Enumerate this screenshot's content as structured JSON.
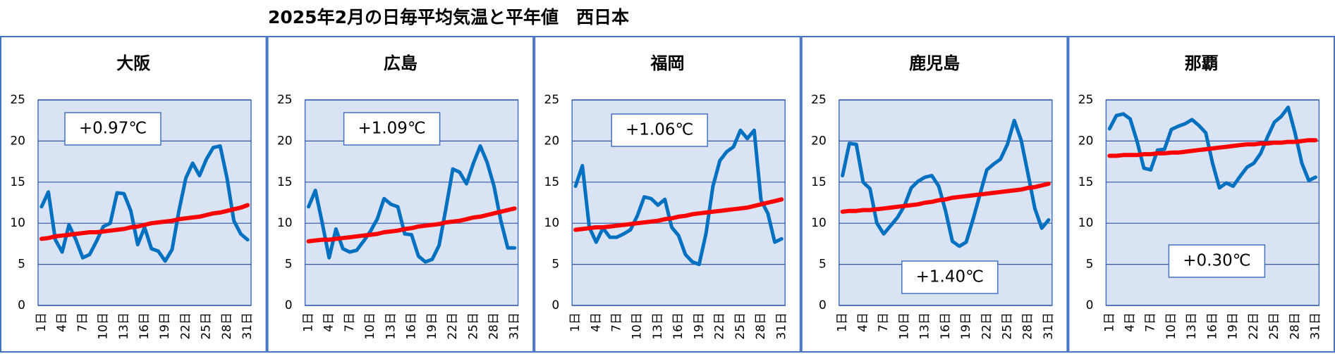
{
  "title": "2025年2月の日毎平均気温と平年値　西日本",
  "chart_data": [
    {
      "type": "line",
      "title": "大阪",
      "annotation": "+0.97℃",
      "categories": [
        "1日",
        null,
        null,
        "4日",
        null,
        null,
        "7日",
        null,
        null,
        "10日",
        null,
        null,
        "13日",
        null,
        null,
        "16日",
        null,
        null,
        "19日",
        null,
        null,
        "22日",
        null,
        null,
        "25日",
        null,
        null,
        "28日",
        null,
        null,
        "31日"
      ],
      "series": [
        {
          "color": "#0070c0",
          "values": [
            12,
            13.8,
            8,
            6.5,
            9.8,
            8,
            5.8,
            6.2,
            7.8,
            9.6,
            10,
            13.7,
            13.6,
            11.5,
            7.4,
            9.5,
            6.9,
            6.6,
            5.4,
            6.8,
            11.5,
            15.5,
            17.3,
            15.8,
            17.8,
            19.2,
            19.4,
            15.5,
            10.3,
            8.7,
            8.0
          ]
        },
        {
          "color": "#ff0000",
          "values": [
            8.1,
            8.2,
            8.4,
            8.5,
            8.6,
            8.7,
            8.8,
            8.9,
            8.9,
            9.0,
            9.1,
            9.2,
            9.3,
            9.5,
            9.6,
            9.8,
            10.0,
            10.1,
            10.2,
            10.3,
            10.5,
            10.6,
            10.7,
            10.8,
            11.0,
            11.2,
            11.3,
            11.5,
            11.7,
            11.9,
            12.2
          ]
        }
      ],
      "ylim": [
        0,
        25
      ],
      "yticks": [
        0,
        5,
        10,
        15,
        20,
        25
      ],
      "grid": true
    },
    {
      "type": "line",
      "title": "広島",
      "annotation": "+1.09℃",
      "categories": [
        "1日",
        null,
        null,
        "4日",
        null,
        null,
        "7日",
        null,
        null,
        "10日",
        null,
        null,
        "13日",
        null,
        null,
        "16日",
        null,
        null,
        "19日",
        null,
        null,
        "22日",
        null,
        null,
        "25日",
        null,
        null,
        "28日",
        null,
        null,
        "31日"
      ],
      "series": [
        {
          "color": "#0070c0",
          "values": [
            12,
            14,
            10,
            5.8,
            9.3,
            6.9,
            6.5,
            6.7,
            7.8,
            9,
            10.5,
            13,
            12.3,
            12,
            8.7,
            8.6,
            6,
            5.3,
            5.6,
            7.3,
            11.8,
            16.6,
            16.2,
            14.8,
            17.3,
            19.4,
            17.4,
            14.5,
            10.3,
            7.0,
            7.0
          ]
        },
        {
          "color": "#ff0000",
          "values": [
            7.8,
            7.9,
            8.0,
            8.0,
            8.1,
            8.2,
            8.3,
            8.4,
            8.5,
            8.6,
            8.7,
            8.9,
            9.0,
            9.1,
            9.3,
            9.4,
            9.6,
            9.7,
            9.8,
            9.9,
            10.1,
            10.2,
            10.3,
            10.5,
            10.7,
            10.8,
            11.0,
            11.2,
            11.4,
            11.6,
            11.8
          ]
        }
      ],
      "ylim": [
        0,
        25
      ],
      "yticks": [
        0,
        5,
        10,
        15,
        20,
        25
      ],
      "grid": true
    },
    {
      "type": "line",
      "title": "福岡",
      "annotation": "+1.06℃",
      "categories": [
        "1日",
        null,
        null,
        "4日",
        null,
        null,
        "7日",
        null,
        null,
        "10日",
        null,
        null,
        "13日",
        null,
        null,
        "16日",
        null,
        null,
        "19日",
        null,
        null,
        "22日",
        null,
        null,
        "25日",
        null,
        null,
        "28日",
        null,
        null,
        "31日"
      ],
      "series": [
        {
          "color": "#0070c0",
          "values": [
            14.5,
            17,
            9.5,
            7.7,
            9.4,
            8.3,
            8.3,
            8.7,
            9.2,
            10.9,
            13.2,
            13,
            12.2,
            12.9,
            9.5,
            8.5,
            6.2,
            5.3,
            5.0,
            8.8,
            14.5,
            17.6,
            18.7,
            19.3,
            21.3,
            20.3,
            21.3,
            12.8,
            11.2,
            7.7,
            8.1
          ]
        },
        {
          "color": "#ff0000",
          "values": [
            9.2,
            9.3,
            9.4,
            9.5,
            9.5,
            9.6,
            9.7,
            9.8,
            9.9,
            10.0,
            10.1,
            10.2,
            10.3,
            10.5,
            10.6,
            10.8,
            10.9,
            11.1,
            11.2,
            11.3,
            11.4,
            11.5,
            11.6,
            11.7,
            11.8,
            11.9,
            12.1,
            12.3,
            12.5,
            12.7,
            12.9
          ]
        }
      ],
      "ylim": [
        0,
        25
      ],
      "yticks": [
        0,
        5,
        10,
        15,
        20,
        25
      ],
      "grid": true
    },
    {
      "type": "line",
      "title": "鹿児島",
      "annotation": "+1.40℃",
      "categories": [
        "1日",
        null,
        null,
        "4日",
        null,
        null,
        "7日",
        null,
        null,
        "10日",
        null,
        null,
        "13日",
        null,
        null,
        "16日",
        null,
        null,
        "19日",
        null,
        null,
        "22日",
        null,
        null,
        "25日",
        null,
        null,
        "28日",
        null,
        null,
        "31日"
      ],
      "series": [
        {
          "color": "#0070c0",
          "values": [
            15.8,
            19.7,
            19.6,
            15,
            14.2,
            10,
            8.7,
            9.7,
            10.7,
            12.1,
            14.3,
            15.1,
            15.6,
            15.8,
            14.5,
            11.5,
            7.8,
            7.2,
            7.7,
            10.5,
            13.5,
            16.5,
            17.2,
            17.8,
            19.6,
            22.5,
            20.1,
            16,
            11.8,
            9.4,
            10.4
          ]
        },
        {
          "color": "#ff0000",
          "values": [
            11.4,
            11.5,
            11.5,
            11.6,
            11.6,
            11.7,
            11.8,
            11.9,
            12.0,
            12.1,
            12.2,
            12.3,
            12.5,
            12.6,
            12.8,
            12.9,
            13.1,
            13.2,
            13.3,
            13.4,
            13.5,
            13.6,
            13.7,
            13.8,
            13.9,
            14.0,
            14.1,
            14.3,
            14.4,
            14.6,
            14.8
          ]
        }
      ],
      "ylim": [
        0,
        25
      ],
      "yticks": [
        0,
        5,
        10,
        15,
        20,
        25
      ],
      "grid": true
    },
    {
      "type": "line",
      "title": "那覇",
      "annotation": "+0.30℃",
      "categories": [
        "1日",
        null,
        null,
        "4日",
        null,
        null,
        "7日",
        null,
        null,
        "10日",
        null,
        null,
        "13日",
        null,
        null,
        "16日",
        null,
        null,
        "19日",
        null,
        null,
        "22日",
        null,
        null,
        "25日",
        null,
        null,
        "28日",
        null,
        null,
        "31日"
      ],
      "series": [
        {
          "color": "#0070c0",
          "values": [
            21.5,
            23.1,
            23.3,
            22.7,
            20,
            16.7,
            16.5,
            18.9,
            19,
            21.4,
            21.8,
            22.1,
            22.6,
            21.9,
            21,
            17.3,
            14.3,
            14.9,
            14.5,
            15.7,
            16.8,
            17.3,
            18.5,
            20.5,
            22.3,
            23,
            24.1,
            21,
            17.3,
            15.2,
            15.6
          ]
        },
        {
          "color": "#ff0000",
          "values": [
            18.2,
            18.2,
            18.3,
            18.3,
            18.3,
            18.4,
            18.4,
            18.5,
            18.5,
            18.6,
            18.6,
            18.7,
            18.8,
            18.9,
            19.0,
            19.1,
            19.2,
            19.3,
            19.4,
            19.5,
            19.6,
            19.6,
            19.7,
            19.7,
            19.8,
            19.8,
            19.9,
            19.9,
            20.0,
            20.1,
            20.1
          ]
        }
      ],
      "ylim": [
        0,
        25
      ],
      "yticks": [
        0,
        5,
        10,
        15,
        20,
        25
      ],
      "grid": true
    }
  ]
}
